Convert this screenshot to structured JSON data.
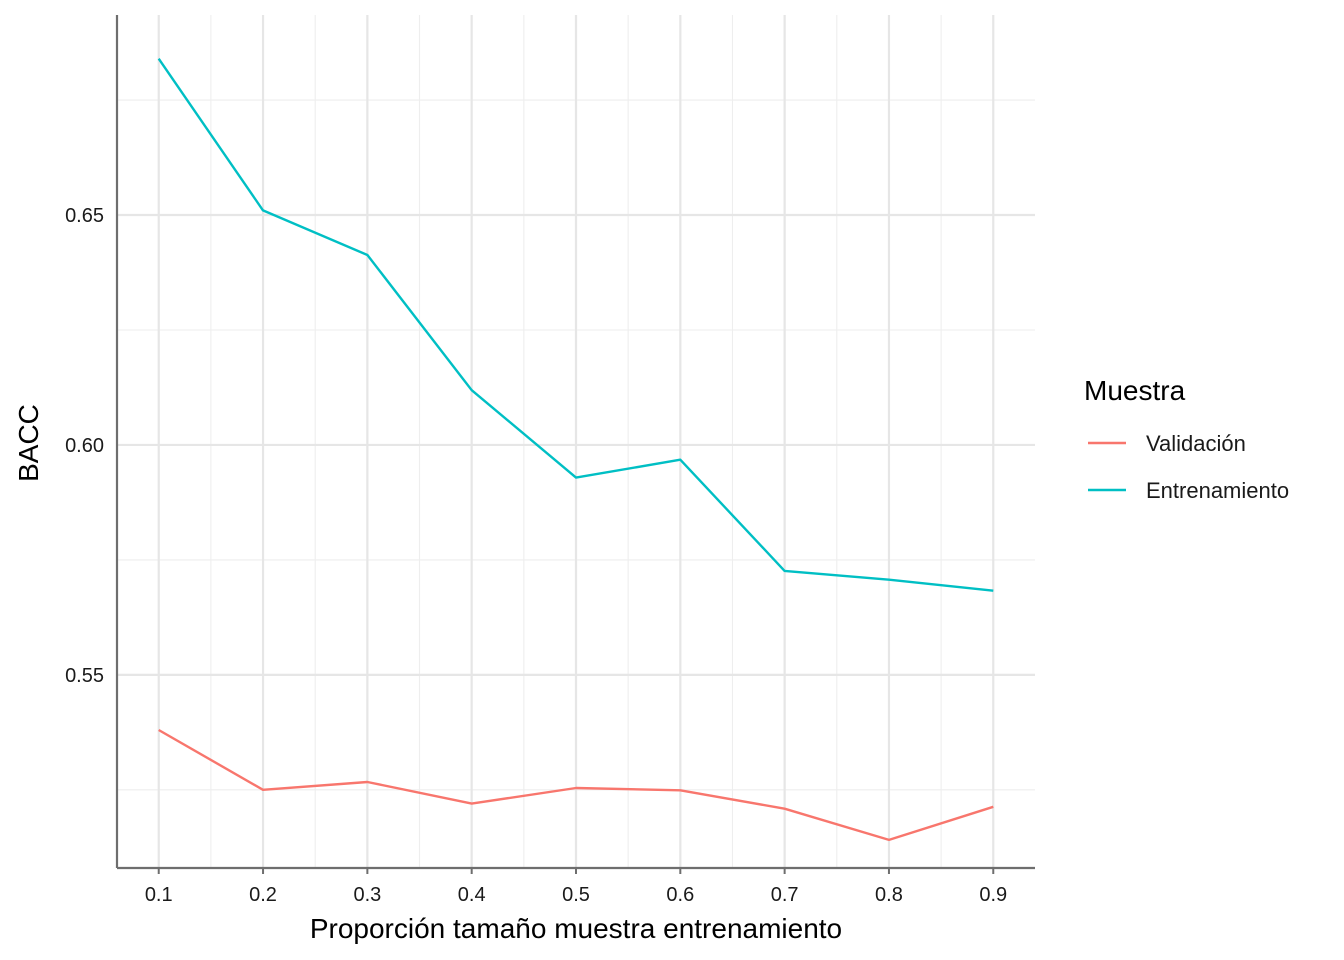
{
  "chart_data": {
    "type": "line",
    "title": "",
    "xlabel": "Proporción tamaño muestra entrenamiento",
    "ylabel": "BACC",
    "x": [
      0.1,
      0.2,
      0.3,
      0.4,
      0.5,
      0.6,
      0.7,
      0.8,
      0.9
    ],
    "x_ticks": [
      "0.1",
      "0.2",
      "0.3",
      "0.4",
      "0.5",
      "0.6",
      "0.7",
      "0.8",
      "0.9"
    ],
    "y_ticks": [
      "0.55",
      "0.60",
      "0.65"
    ],
    "xlim": [
      0.06,
      0.94
    ],
    "ylim": [
      0.508,
      0.6935
    ],
    "grid": true,
    "legend_title": "Muestra",
    "legend_position": "right",
    "series": [
      {
        "name": "Validación",
        "color": "#F8766D",
        "values": [
          0.538,
          0.525,
          0.5267,
          0.522,
          0.5254,
          0.5249,
          0.5209,
          0.5141,
          0.5213
        ]
      },
      {
        "name": "Entrenamiento",
        "color": "#00BFC4",
        "values": [
          0.684,
          0.651,
          0.6413,
          0.6119,
          0.5929,
          0.5968,
          0.5726,
          0.5707,
          0.5683
        ]
      }
    ]
  }
}
